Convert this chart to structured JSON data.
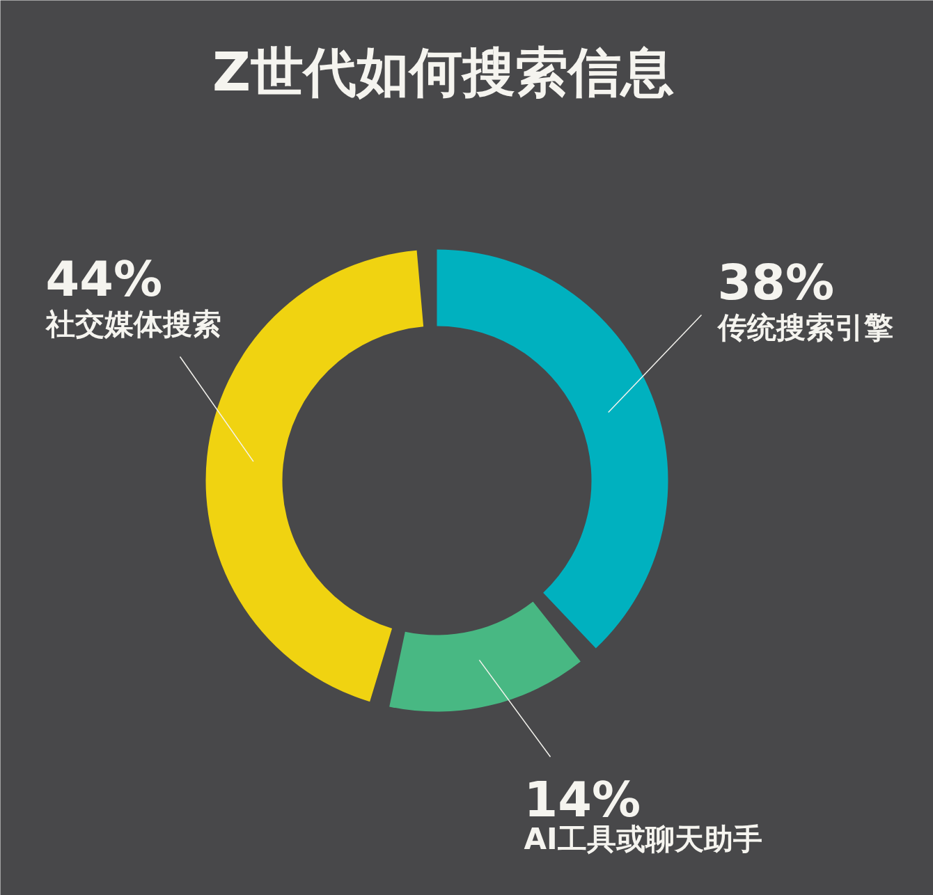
{
  "chart_data": {
    "type": "donut",
    "title": "Z世代如何搜索信息",
    "categories": [
      "传统搜索引擎",
      "AI工具或聊天助手",
      "社交媒体搜索"
    ],
    "values": [
      38,
      14,
      44
    ],
    "colors": [
      "#00b1bf",
      "#48b883",
      "#f0d311"
    ],
    "value_labels": [
      "38%",
      "14%",
      "44%"
    ]
  }
}
